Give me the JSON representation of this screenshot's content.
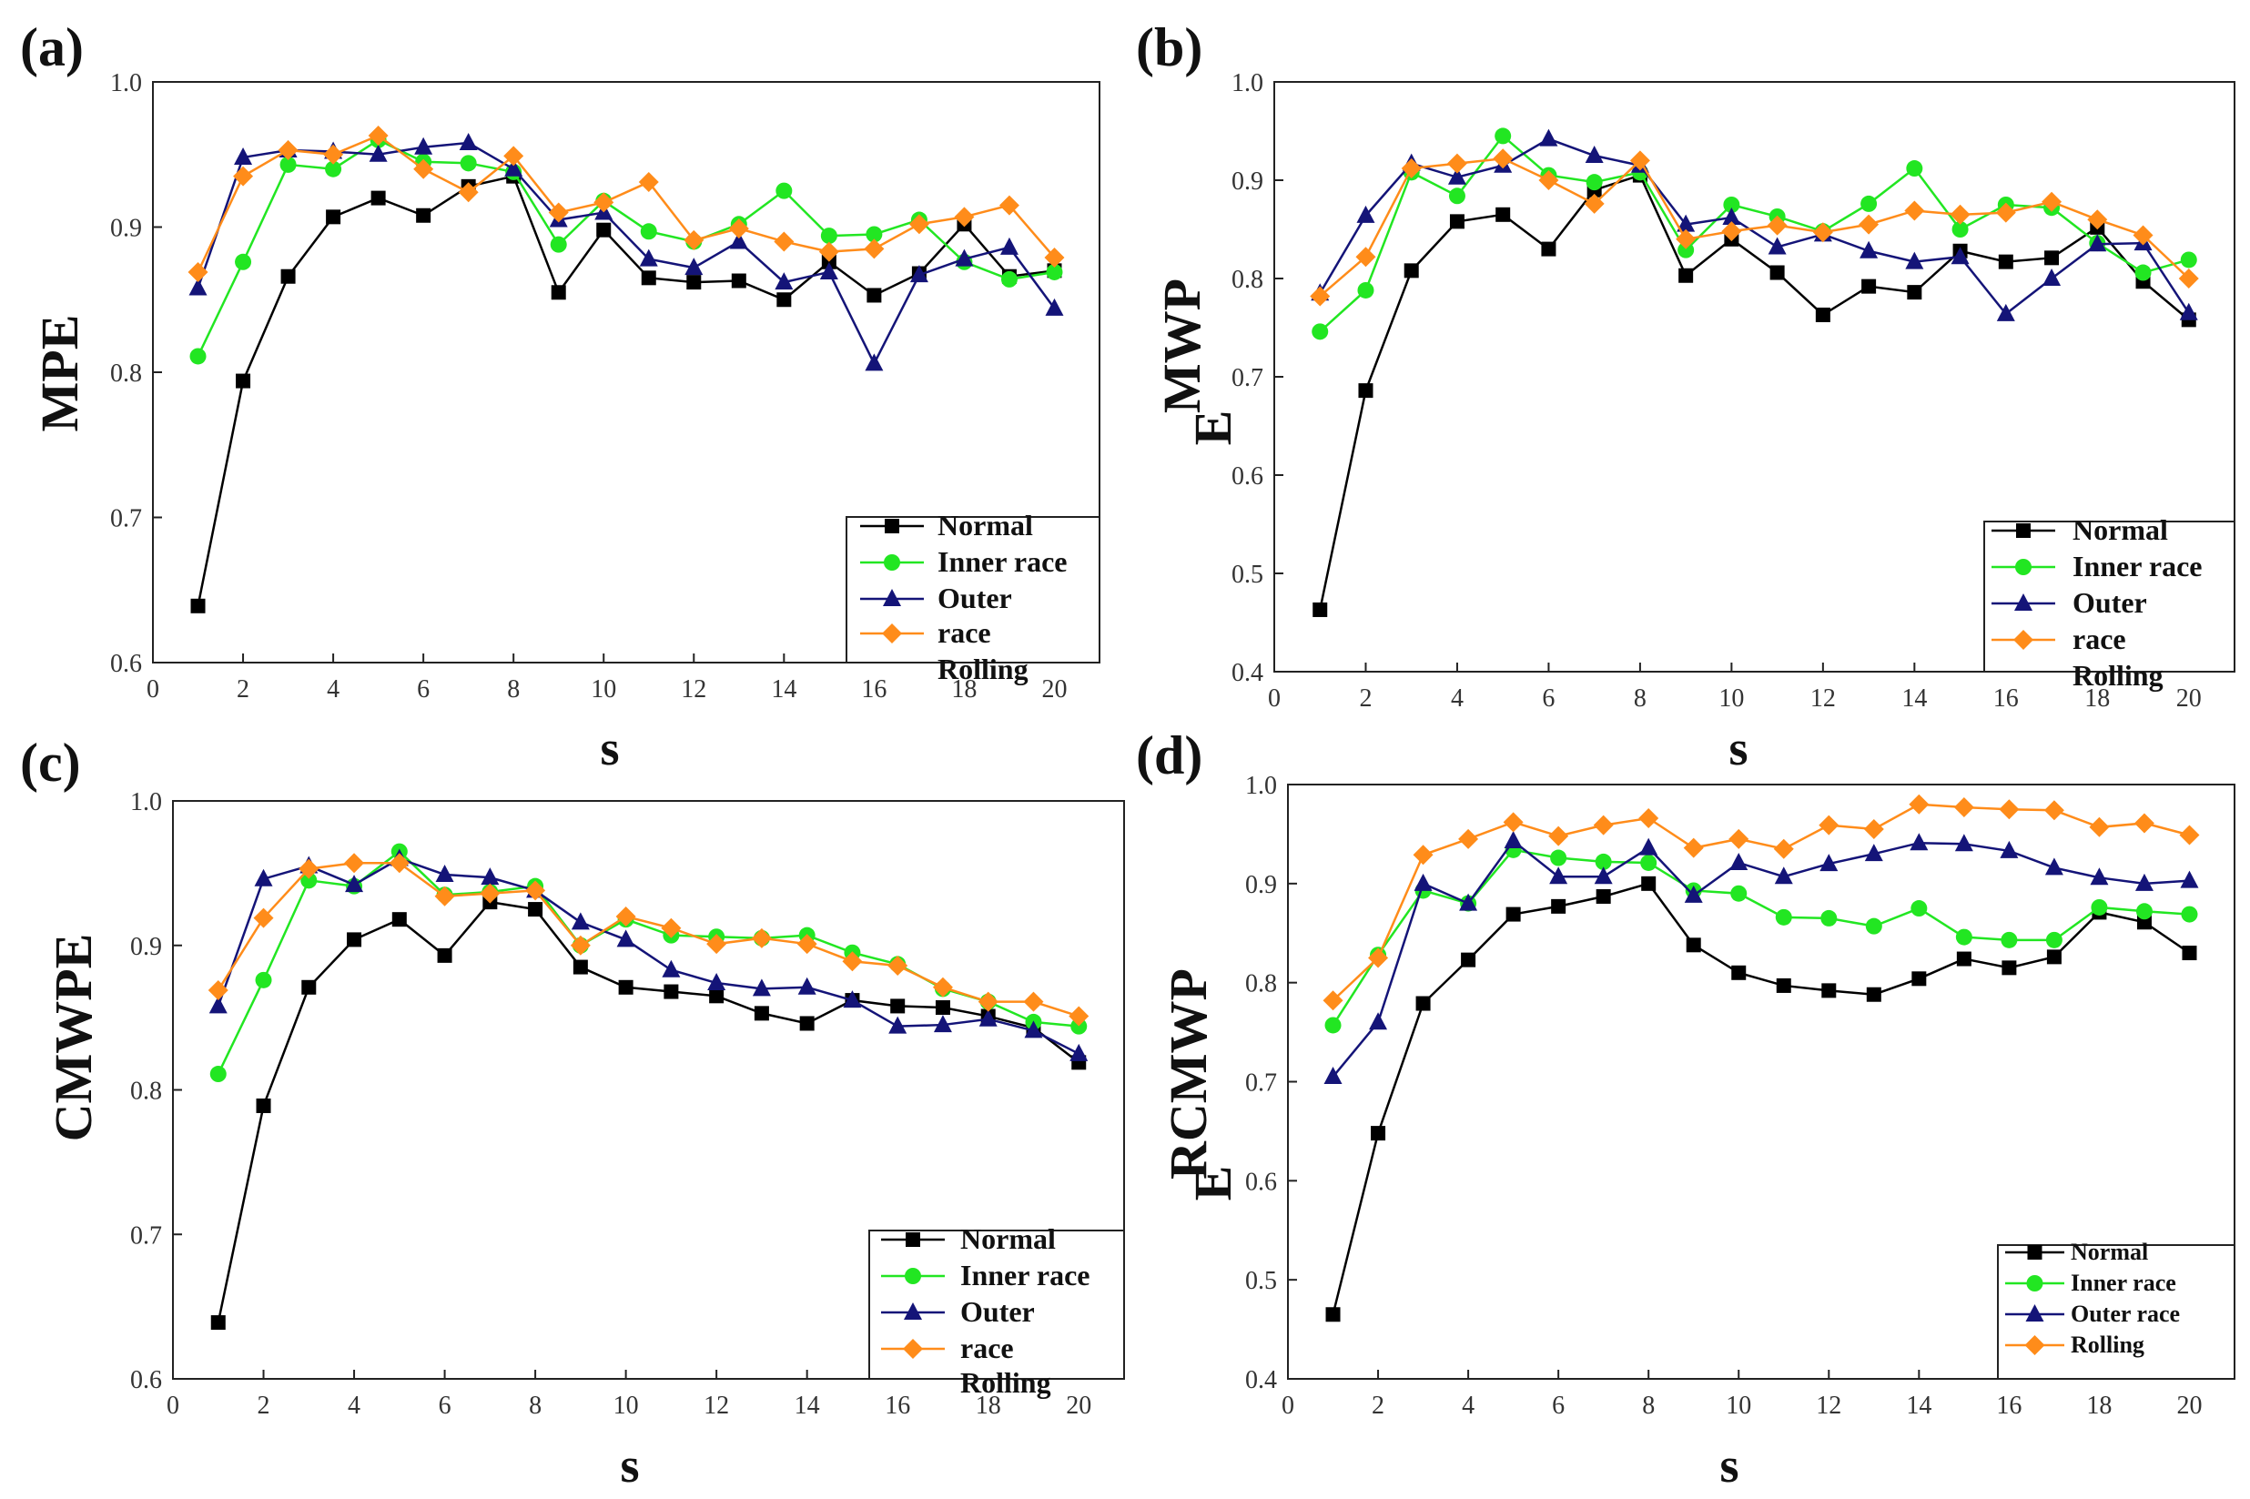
{
  "chart_data": [
    {
      "type": "line",
      "panel_label": "(a)",
      "ylabel": "MPE",
      "xlabel": "s",
      "xlim": [
        0,
        21
      ],
      "ylim": [
        0.6,
        1.0
      ],
      "xticks": [
        "0",
        "2",
        "4",
        "6",
        "8",
        "10",
        "12",
        "14",
        "16",
        "18",
        "20"
      ],
      "yticks": [
        "0.6",
        "0.7",
        "0.8",
        "0.9",
        "1.0"
      ],
      "x": [
        1,
        2,
        3,
        4,
        5,
        6,
        7,
        8,
        9,
        10,
        11,
        12,
        13,
        14,
        15,
        16,
        17,
        18,
        19,
        20
      ],
      "legend": [
        "Normal",
        "Inner race",
        "Outer",
        "race",
        "Rolling"
      ],
      "series": [
        {
          "name": "Normal",
          "color": "#000000",
          "marker": "square",
          "values": [
            0.639,
            0.794,
            0.866,
            0.907,
            0.92,
            0.908,
            0.928,
            0.935,
            0.855,
            0.898,
            0.865,
            0.862,
            0.863,
            0.85,
            0.876,
            0.853,
            0.868,
            0.902,
            0.866,
            0.87
          ]
        },
        {
          "name": "Inner race",
          "color": "#22e622",
          "marker": "circle",
          "values": [
            0.811,
            0.876,
            0.943,
            0.94,
            0.96,
            0.945,
            0.944,
            0.938,
            0.888,
            0.918,
            0.897,
            0.89,
            0.902,
            0.925,
            0.894,
            0.895,
            0.905,
            0.876,
            0.864,
            0.869
          ]
        },
        {
          "name": "Outer race",
          "color": "#141478",
          "marker": "triangle",
          "values": [
            0.858,
            0.948,
            0.953,
            0.952,
            0.95,
            0.955,
            0.958,
            0.94,
            0.905,
            0.91,
            0.878,
            0.872,
            0.89,
            0.862,
            0.869,
            0.806,
            0.867,
            0.878,
            0.886,
            0.844
          ]
        },
        {
          "name": "Rolling",
          "color": "#ff8c1a",
          "marker": "diamond",
          "values": [
            0.869,
            0.935,
            0.953,
            0.95,
            0.963,
            0.94,
            0.924,
            0.949,
            0.91,
            0.917,
            0.931,
            0.891,
            0.899,
            0.89,
            0.883,
            0.885,
            0.902,
            0.907,
            0.915,
            0.879
          ]
        }
      ]
    },
    {
      "type": "line",
      "panel_label": "(b)",
      "ylabel": "MWP",
      "ylabel2": "E",
      "xlabel": "s",
      "xlim": [
        0,
        21
      ],
      "ylim": [
        0.4,
        1.0
      ],
      "xticks": [
        "0",
        "2",
        "4",
        "6",
        "8",
        "10",
        "12",
        "14",
        "16",
        "18",
        "20"
      ],
      "yticks": [
        "0.4",
        "0.5",
        "0.6",
        "0.7",
        "0.8",
        "0.9",
        "1.0"
      ],
      "x": [
        1,
        2,
        3,
        4,
        5,
        6,
        7,
        8,
        9,
        10,
        11,
        12,
        13,
        14,
        15,
        16,
        17,
        18,
        19,
        20
      ],
      "legend": [
        "Normal",
        "Inner race",
        "Outer",
        "race",
        "Rolling"
      ],
      "series": [
        {
          "name": "Normal",
          "color": "#000000",
          "marker": "square",
          "values": [
            0.463,
            0.686,
            0.808,
            0.858,
            0.865,
            0.83,
            0.89,
            0.905,
            0.803,
            0.84,
            0.806,
            0.763,
            0.792,
            0.786,
            0.828,
            0.817,
            0.821,
            0.852,
            0.797,
            0.758
          ]
        },
        {
          "name": "Inner race",
          "color": "#22e622",
          "marker": "circle",
          "values": [
            0.746,
            0.788,
            0.908,
            0.884,
            0.945,
            0.905,
            0.898,
            0.908,
            0.829,
            0.875,
            0.863,
            0.848,
            0.876,
            0.912,
            0.85,
            0.875,
            0.872,
            0.836,
            0.806,
            0.819
          ]
        },
        {
          "name": "Outer race",
          "color": "#141478",
          "marker": "triangle",
          "values": [
            0.785,
            0.864,
            0.917,
            0.903,
            0.915,
            0.942,
            0.925,
            0.915,
            0.855,
            0.862,
            0.832,
            0.845,
            0.828,
            0.817,
            0.822,
            0.764,
            0.8,
            0.835,
            0.836,
            0.765
          ]
        },
        {
          "name": "Rolling",
          "color": "#ff8c1a",
          "marker": "diamond",
          "values": [
            0.782,
            0.822,
            0.912,
            0.917,
            0.922,
            0.9,
            0.876,
            0.92,
            0.84,
            0.848,
            0.854,
            0.847,
            0.855,
            0.869,
            0.865,
            0.867,
            0.878,
            0.86,
            0.844,
            0.8
          ]
        }
      ]
    },
    {
      "type": "line",
      "panel_label": "(c)",
      "ylabel": "CMWPE",
      "xlabel": "s",
      "xlim": [
        0,
        21
      ],
      "ylim": [
        0.6,
        1.0
      ],
      "xticks": [
        "0",
        "2",
        "4",
        "6",
        "8",
        "10",
        "12",
        "14",
        "16",
        "18",
        "20"
      ],
      "yticks": [
        "0.6",
        "0.7",
        "0.8",
        "0.9",
        "1.0"
      ],
      "x": [
        1,
        2,
        3,
        4,
        5,
        6,
        7,
        8,
        9,
        10,
        11,
        12,
        13,
        14,
        15,
        16,
        17,
        18,
        19,
        20
      ],
      "legend": [
        "Normal",
        "Inner race",
        "Outer",
        "race",
        "Rolling"
      ],
      "series": [
        {
          "name": "Normal",
          "color": "#000000",
          "marker": "square",
          "values": [
            0.639,
            0.789,
            0.871,
            0.904,
            0.918,
            0.893,
            0.93,
            0.925,
            0.885,
            0.871,
            0.868,
            0.865,
            0.853,
            0.846,
            0.862,
            0.858,
            0.857,
            0.851,
            0.843,
            0.819
          ]
        },
        {
          "name": "Inner race",
          "color": "#22e622",
          "marker": "circle",
          "values": [
            0.811,
            0.876,
            0.945,
            0.941,
            0.965,
            0.935,
            0.937,
            0.941,
            0.9,
            0.918,
            0.907,
            0.906,
            0.905,
            0.907,
            0.895,
            0.887,
            0.87,
            0.861,
            0.847,
            0.844
          ]
        },
        {
          "name": "Outer race",
          "color": "#141478",
          "marker": "triangle",
          "values": [
            0.858,
            0.946,
            0.955,
            0.942,
            0.96,
            0.949,
            0.947,
            0.938,
            0.916,
            0.904,
            0.883,
            0.874,
            0.87,
            0.871,
            0.862,
            0.844,
            0.845,
            0.849,
            0.841,
            0.825
          ]
        },
        {
          "name": "Rolling",
          "color": "#ff8c1a",
          "marker": "diamond",
          "values": [
            0.869,
            0.919,
            0.953,
            0.957,
            0.957,
            0.934,
            0.936,
            0.938,
            0.9,
            0.92,
            0.912,
            0.901,
            0.905,
            0.901,
            0.889,
            0.886,
            0.871,
            0.861,
            0.861,
            0.851
          ]
        }
      ]
    },
    {
      "type": "line",
      "panel_label": "(d)",
      "ylabel": "RCMWP",
      "ylabel2": "E",
      "xlabel": "s",
      "xlim": [
        0,
        21
      ],
      "ylim": [
        0.4,
        1.0
      ],
      "xticks": [
        "0",
        "2",
        "4",
        "6",
        "8",
        "10",
        "12",
        "14",
        "16",
        "18",
        "20"
      ],
      "yticks": [
        "0.4",
        "0.5",
        "0.6",
        "0.7",
        "0.8",
        "0.9",
        "1.0"
      ],
      "x": [
        1,
        2,
        3,
        4,
        5,
        6,
        7,
        8,
        9,
        10,
        11,
        12,
        13,
        14,
        15,
        16,
        17,
        18,
        19,
        20
      ],
      "legend": [
        "Normal",
        "Inner race",
        "Outer race",
        "Rolling"
      ],
      "series": [
        {
          "name": "Normal",
          "color": "#000000",
          "marker": "square",
          "values": [
            0.465,
            0.648,
            0.779,
            0.823,
            0.869,
            0.877,
            0.887,
            0.9,
            0.838,
            0.81,
            0.797,
            0.792,
            0.788,
            0.804,
            0.824,
            0.815,
            0.826,
            0.871,
            0.861,
            0.83
          ]
        },
        {
          "name": "Inner race",
          "color": "#22e622",
          "marker": "circle",
          "values": [
            0.757,
            0.828,
            0.893,
            0.88,
            0.934,
            0.926,
            0.922,
            0.921,
            0.893,
            0.89,
            0.866,
            0.865,
            0.857,
            0.875,
            0.846,
            0.843,
            0.843,
            0.876,
            0.872,
            0.869
          ]
        },
        {
          "name": "Outer race",
          "color": "#141478",
          "marker": "triangle",
          "values": [
            0.705,
            0.76,
            0.9,
            0.88,
            0.943,
            0.907,
            0.907,
            0.936,
            0.888,
            0.921,
            0.907,
            0.92,
            0.93,
            0.941,
            0.94,
            0.933,
            0.916,
            0.906,
            0.9,
            0.903
          ]
        },
        {
          "name": "Rolling",
          "color": "#ff8c1a",
          "marker": "diamond",
          "values": [
            0.782,
            0.825,
            0.929,
            0.945,
            0.962,
            0.948,
            0.959,
            0.966,
            0.936,
            0.945,
            0.935,
            0.959,
            0.955,
            0.98,
            0.977,
            0.975,
            0.974,
            0.957,
            0.961,
            0.949
          ]
        }
      ]
    }
  ]
}
